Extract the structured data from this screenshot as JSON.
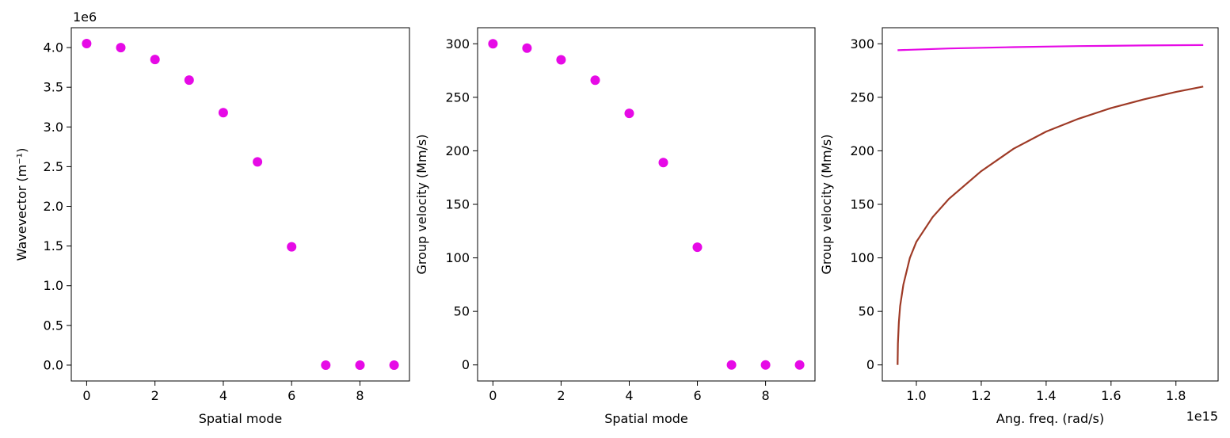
{
  "chart_data": [
    {
      "type": "scatter",
      "title": "",
      "xlabel": "Spatial mode",
      "ylabel": "Wavevector (m⁻¹)",
      "offset_label": "1e6",
      "xlim": [
        -0.45,
        9.45
      ],
      "ylim": [
        -0.2,
        4.25
      ],
      "xticks": [
        0,
        2,
        4,
        6,
        8
      ],
      "xtick_labels": [
        "0",
        "2",
        "4",
        "6",
        "8"
      ],
      "yticks": [
        0.0,
        0.5,
        1.0,
        1.5,
        2.0,
        2.5,
        3.0,
        3.5,
        4.0
      ],
      "ytick_labels": [
        "0.0",
        "0.5",
        "1.0",
        "1.5",
        "2.0",
        "2.5",
        "3.0",
        "3.5",
        "4.0"
      ],
      "grid": false,
      "series": [
        {
          "color": "#e60ae6",
          "x": [
            0,
            1,
            2,
            3,
            4,
            5,
            6,
            7,
            8,
            9
          ],
          "y": [
            4.05,
            4.0,
            3.85,
            3.59,
            3.18,
            2.56,
            1.49,
            0.0,
            0.0,
            0.0
          ]
        }
      ]
    },
    {
      "type": "scatter",
      "title": "",
      "xlabel": "Spatial mode",
      "ylabel": "Group velocity (Mm/s)",
      "xlim": [
        -0.45,
        9.45
      ],
      "ylim": [
        -15,
        315
      ],
      "xticks": [
        0,
        2,
        4,
        6,
        8
      ],
      "xtick_labels": [
        "0",
        "2",
        "4",
        "6",
        "8"
      ],
      "yticks": [
        0,
        50,
        100,
        150,
        200,
        250,
        300
      ],
      "ytick_labels": [
        "0",
        "50",
        "100",
        "150",
        "200",
        "250",
        "300"
      ],
      "grid": false,
      "series": [
        {
          "color": "#e60ae6",
          "x": [
            0,
            1,
            2,
            3,
            4,
            5,
            6,
            7,
            8,
            9
          ],
          "y": [
            300,
            296,
            285,
            266,
            235,
            189,
            110,
            0,
            0,
            0
          ]
        }
      ]
    },
    {
      "type": "line",
      "title": "",
      "xlabel": "Ang. freq. (rad/s)",
      "ylabel": "Group velocity (Mm/s)",
      "offset_label": "1e15",
      "xlim": [
        0.895,
        1.93
      ],
      "ylim": [
        -15,
        315
      ],
      "xticks": [
        1.0,
        1.2,
        1.4,
        1.6,
        1.8
      ],
      "xtick_labels": [
        "1.0",
        "1.2",
        "1.4",
        "1.6",
        "1.8"
      ],
      "yticks": [
        0,
        50,
        100,
        150,
        200,
        250,
        300
      ],
      "ytick_labels": [
        "0",
        "50",
        "100",
        "150",
        "200",
        "250",
        "300"
      ],
      "grid": false,
      "series": [
        {
          "color": "#e60ae6",
          "x": [
            0.942,
            1.1,
            1.3,
            1.5,
            1.7,
            1.884
          ],
          "y": [
            294,
            295.6,
            296.9,
            297.8,
            298.4,
            298.8
          ]
        },
        {
          "color": "#9e3a26",
          "x": [
            0.942,
            0.943,
            0.946,
            0.95,
            0.96,
            0.98,
            1.0,
            1.05,
            1.1,
            1.2,
            1.3,
            1.4,
            1.5,
            1.6,
            1.7,
            1.8,
            1.884
          ],
          "y": [
            0,
            20,
            40,
            55,
            75,
            100,
            115,
            138,
            155,
            181,
            202,
            218,
            230,
            240,
            248,
            255,
            260
          ]
        }
      ]
    }
  ]
}
